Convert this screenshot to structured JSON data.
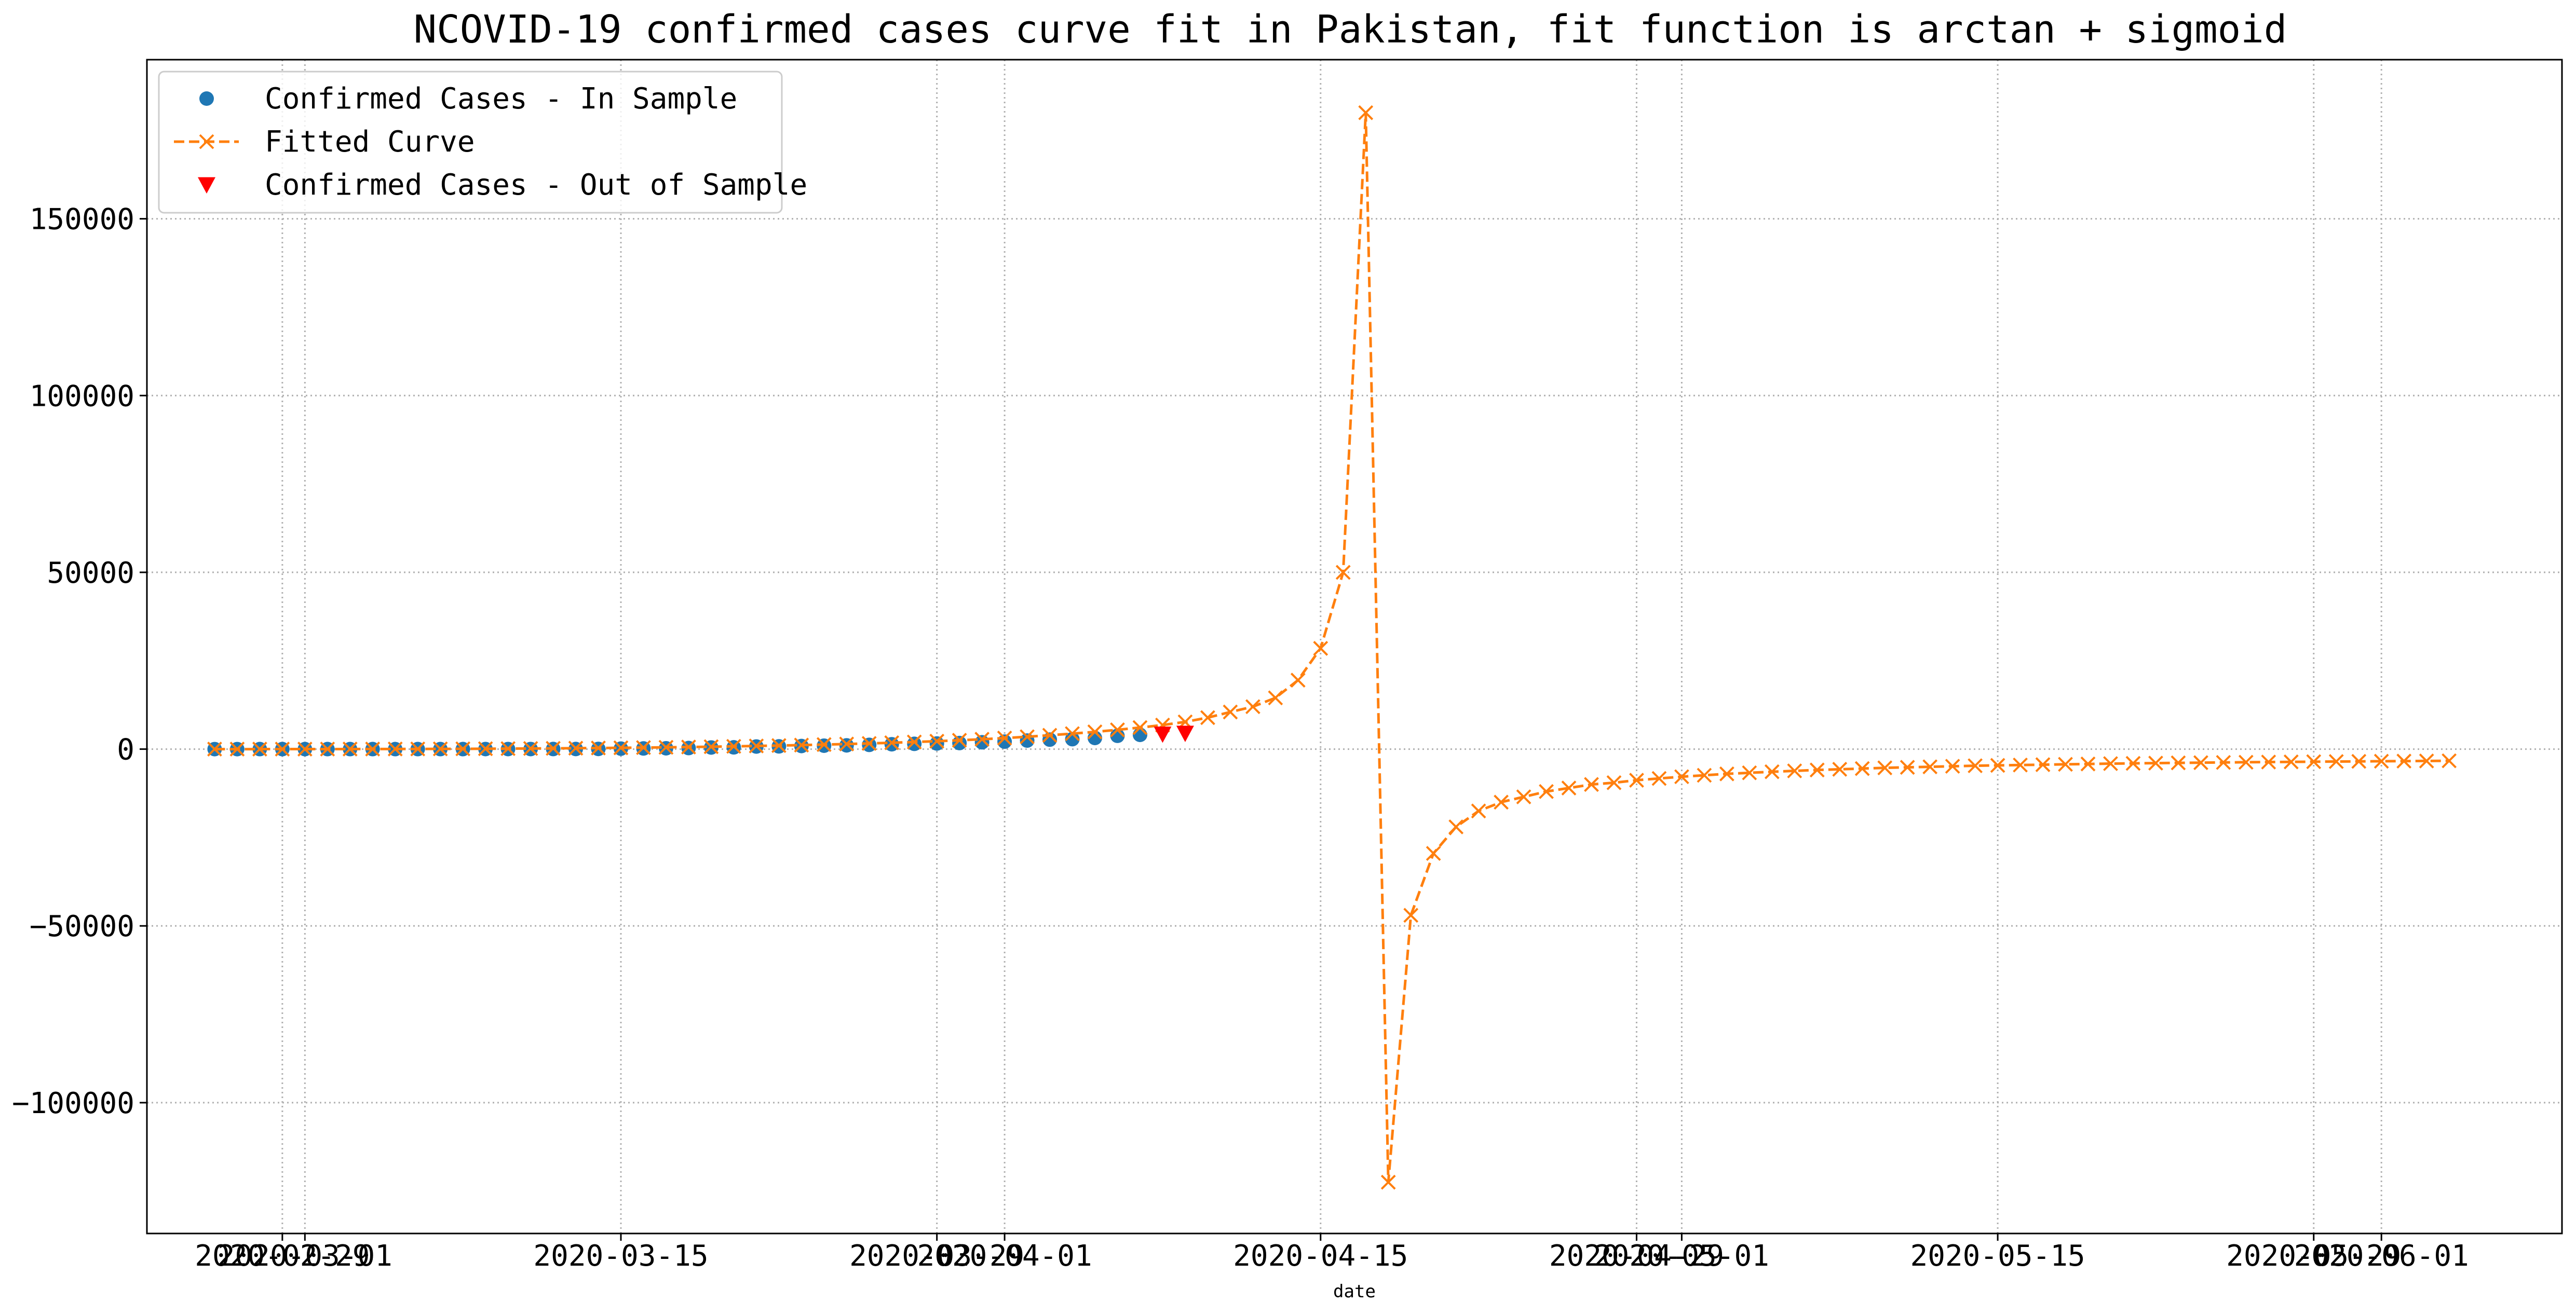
{
  "chart_data": {
    "type": "line",
    "title": "NCOVID-19 confirmed cases curve fit in Pakistan, fit function is arctan + sigmoid",
    "xlabel": "date",
    "ylabel": "",
    "grid": true,
    "legend_position": "top-left",
    "xlim": [
      "2020-02-23",
      "2020-06-09"
    ],
    "ylim": [
      -137000,
      195000
    ],
    "x_ticks": [
      "2020-02-29",
      "2020-03-01",
      "2020-03-15",
      "2020-03-29",
      "2020-04-01",
      "2020-04-15",
      "2020-04-29",
      "2020-05-01",
      "2020-05-15",
      "2020-05-29",
      "2020-06-01"
    ],
    "y_ticks": [
      -100000,
      -50000,
      0,
      50000,
      100000,
      150000
    ],
    "y_tick_labels": [
      "−100000",
      "−50000",
      "0",
      "50000",
      "100000",
      "150000"
    ],
    "series": [
      {
        "name": "Confirmed Cases - In Sample",
        "marker": "circle",
        "linestyle": "none",
        "color": "#1f77b4",
        "start_date": "2020-02-26",
        "values": [
          2,
          2,
          4,
          4,
          4,
          5,
          5,
          5,
          6,
          6,
          6,
          7,
          16,
          20,
          21,
          28,
          31,
          53,
          136,
          187,
          236,
          299,
          454,
          501,
          730,
          776,
          875,
          972,
          1063,
          1201,
          1373,
          1495,
          1597,
          1717,
          1938,
          2118,
          2421,
          2686,
          2818,
          3157,
          3766,
          4035
        ]
      },
      {
        "name": "Fitted Curve",
        "marker": "x",
        "linestyle": "dashed",
        "color": "#ff7f0e",
        "start_date": "2020-02-26",
        "values": [
          1,
          2,
          3,
          5,
          8,
          12,
          18,
          26,
          36,
          49,
          65,
          85,
          110,
          140,
          175,
          215,
          260,
          312,
          370,
          435,
          508,
          590,
          680,
          780,
          890,
          1010,
          1140,
          1285,
          1440,
          1610,
          1800,
          2010,
          2240,
          2500,
          2790,
          3120,
          3500,
          3920,
          4380,
          4880,
          5450,
          6100,
          6800,
          7700,
          8900,
          10500,
          12000,
          14500,
          19500,
          28500,
          50000,
          180000,
          -122500,
          -47000,
          -29500,
          -22000,
          -17500,
          -15000,
          -13500,
          -12000,
          -11000,
          -10000,
          -9500,
          -8800,
          -8300,
          -7800,
          -7400,
          -7000,
          -6700,
          -6400,
          -6150,
          -5900,
          -5700,
          -5500,
          -5300,
          -5150,
          -5000,
          -4850,
          -4700,
          -4600,
          -4500,
          -4400,
          -4300,
          -4200,
          -4100,
          -4030,
          -3960,
          -3890,
          -3830,
          -3770,
          -3710,
          -3660,
          -3610,
          -3560,
          -3510,
          -3470,
          -3430,
          -3390,
          -3350,
          -3310
        ]
      },
      {
        "name": "Confirmed Cases - Out of Sample",
        "marker": "triangle-down",
        "linestyle": "none",
        "color": "#ff0000",
        "x": [
          "2020-04-08",
          "2020-04-09"
        ],
        "values": [
          4263,
          4489
        ]
      }
    ],
    "colors": {
      "grid": "#b0b0b0",
      "axes": "#000000"
    }
  }
}
